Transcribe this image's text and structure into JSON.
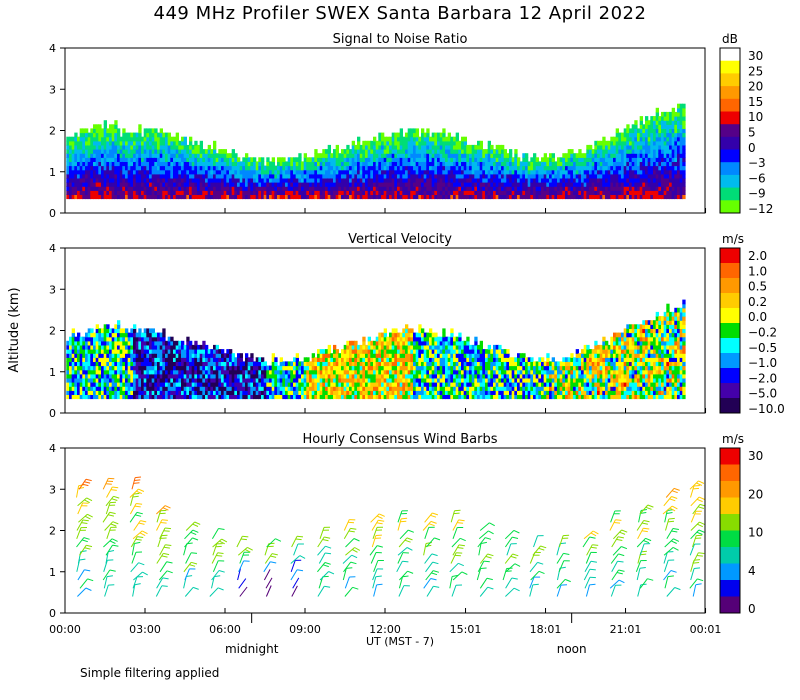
{
  "title": "449 MHz Profiler SWEX Santa Barbara 12 April 2022",
  "ylabel": "Altitude (km)",
  "xlabel": "UT  (MST - 7)",
  "footnote": "Simple filtering applied",
  "x_ticks": [
    "00:00",
    "03:00",
    "06:00",
    "09:00",
    "12:00",
    "15:01",
    "18:01",
    "21:01",
    "00:01"
  ],
  "x_tick_hours": [
    0,
    3,
    6,
    9,
    12,
    15.02,
    18.02,
    21.02,
    24.02
  ],
  "local_markers": [
    {
      "label": "midnight",
      "hour": 7
    },
    {
      "label": "noon",
      "hour": 19
    }
  ],
  "chart_data": [
    {
      "type": "heatmap",
      "title": "Signal to Noise Ratio",
      "ylabel": "Altitude (km)",
      "ylim": [
        0,
        4
      ],
      "y_ticks": [
        0,
        1,
        2,
        3,
        4
      ],
      "xlim_hours": [
        0,
        24
      ],
      "colorbar": {
        "unit": "dB",
        "labels": [
          "30",
          "25",
          "20",
          "15",
          "10",
          "5",
          "0",
          "−3",
          "−6",
          "−9",
          "−12"
        ],
        "colors": [
          "#ffffff",
          "#ffff00",
          "#ffcc00",
          "#ff9900",
          "#ff6600",
          "#ee0000",
          "#550088",
          "#3300aa",
          "#0000ff",
          "#0088ff",
          "#00bbee",
          "#00dd77",
          "#66ff00"
        ]
      },
      "description_profile": {
        "data_top_km_range": [
          1.3,
          2.7
        ],
        "high_snr_core_km": [
          0.35,
          1.6
        ]
      }
    },
    {
      "type": "heatmap",
      "title": "Vertical Velocity",
      "ylabel": "Altitude (km)",
      "ylim": [
        0,
        4
      ],
      "y_ticks": [
        0,
        1,
        2,
        3,
        4
      ],
      "xlim_hours": [
        0,
        24
      ],
      "colorbar": {
        "unit": "m/s",
        "labels": [
          "2.0",
          "1.0",
          "0.5",
          "0.2",
          "0.0",
          "−0.2",
          "−0.5",
          "−1.0",
          "−2.0",
          "−5.0",
          "−10.0"
        ],
        "colors": [
          "#ee0000",
          "#ff6600",
          "#ff9900",
          "#ffcc00",
          "#ffff00",
          "#00dd00",
          "#00ffff",
          "#0099ff",
          "#0000ff",
          "#4400aa",
          "#220055"
        ]
      }
    },
    {
      "type": "scatter",
      "title": "Hourly Consensus Wind Barbs",
      "ylabel": "Altitude (km)",
      "ylim": [
        0,
        4
      ],
      "y_ticks": [
        0,
        1,
        2,
        3,
        4
      ],
      "xlim_hours": [
        0,
        24
      ],
      "colorbar": {
        "unit": "m/s",
        "labels": [
          "30",
          "20",
          "10",
          "4",
          "0"
        ],
        "colors": [
          "#ee0000",
          "#ff6600",
          "#ff9900",
          "#ffcc00",
          "#88dd00",
          "#00dd44",
          "#00ccaa",
          "#0099ff",
          "#0000ee",
          "#550077"
        ]
      },
      "barb_hours": [
        0.5,
        1.5,
        2.5,
        3.5,
        4.5,
        5.5,
        6.5,
        7.5,
        8.5,
        9.5,
        10.5,
        11.5,
        12.5,
        13.5,
        14.5,
        15.5,
        16.5,
        17.5,
        18.5,
        19.5,
        20.5,
        21.5,
        22.5,
        23.5
      ],
      "barb_altitudes_km": [
        0.4,
        0.6,
        0.8,
        1.0,
        1.2,
        1.4,
        1.6,
        1.8,
        2.0,
        2.2,
        2.4,
        2.6,
        2.8,
        3.0
      ]
    }
  ]
}
